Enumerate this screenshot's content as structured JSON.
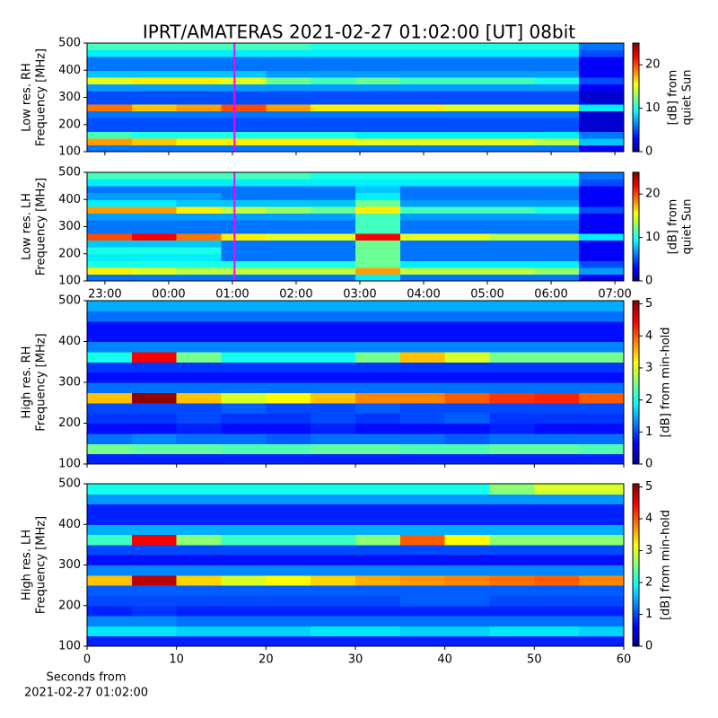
{
  "title": "IPRT/AMATERAS 2021-02-27 01:02:00 [UT]   08bit",
  "chart_data": [
    {
      "type": "heatmap",
      "ylabel": [
        "Low res. RH",
        "Frequency [MHz]"
      ],
      "colorbar_label": [
        "[dB] from",
        "quiet Sun"
      ],
      "colormap": "jet",
      "clim": [
        0,
        25
      ],
      "cticks": [
        0,
        10,
        20
      ],
      "xlim": [
        22.72,
        31.14
      ],
      "xticks": [
        23,
        24,
        25,
        26,
        27,
        28,
        29,
        30,
        31
      ],
      "xticklabels": false,
      "ylim": [
        100,
        500
      ],
      "yticks": [
        100,
        200,
        300,
        400,
        500
      ],
      "cursor_x": 25.0333,
      "cursor_color": "#ff00ff",
      "z": [
        [
          6,
          6,
          6,
          6,
          6,
          6,
          6,
          6,
          6,
          6,
          6,
          3
        ],
        [
          18,
          17,
          16,
          16,
          16,
          16,
          15,
          15,
          15,
          15,
          14,
          8
        ],
        [
          11,
          10,
          10,
          10,
          10,
          10,
          9,
          9,
          9,
          9,
          9,
          6
        ],
        [
          5,
          5,
          5,
          5,
          5,
          5,
          5,
          5,
          5,
          5,
          5,
          2
        ],
        [
          5,
          5,
          5,
          5,
          5,
          5,
          5,
          5,
          5,
          5,
          5,
          2
        ],
        [
          6,
          6,
          6,
          6,
          6,
          6,
          6,
          6,
          6,
          6,
          6,
          2
        ],
        [
          19,
          17,
          18,
          20,
          18,
          16,
          16,
          16,
          15,
          15,
          15,
          9
        ],
        [
          5,
          5,
          5,
          5,
          5,
          5,
          5,
          5,
          5,
          5,
          5,
          2
        ],
        [
          5,
          5,
          5,
          5,
          5,
          5,
          5,
          5,
          5,
          5,
          5,
          2
        ],
        [
          7,
          7,
          7,
          7,
          7,
          7,
          7,
          7,
          7,
          7,
          7,
          3
        ],
        [
          15,
          16,
          16,
          15,
          12,
          11,
          12,
          11,
          11,
          11,
          10,
          5
        ],
        [
          8,
          8,
          8,
          8,
          7,
          7,
          7,
          7,
          7,
          7,
          7,
          3
        ],
        [
          6,
          6,
          6,
          6,
          6,
          6,
          6,
          6,
          6,
          6,
          6,
          3
        ],
        [
          6,
          6,
          6,
          6,
          6,
          6,
          6,
          6,
          6,
          6,
          6,
          3
        ],
        [
          9,
          9,
          9,
          9,
          9,
          9,
          9,
          9,
          9,
          9,
          9,
          5
        ],
        [
          11,
          11,
          11,
          11,
          11,
          10,
          10,
          10,
          10,
          10,
          10,
          6
        ]
      ]
    },
    {
      "type": "heatmap",
      "ylabel": [
        "Low res. LH",
        "Frequency [MHz]"
      ],
      "colorbar_label": [
        "[dB] from",
        "quiet Sun"
      ],
      "colormap": "jet",
      "clim": [
        0,
        25
      ],
      "cticks": [
        0,
        10,
        20
      ],
      "xlim": [
        22.72,
        31.14
      ],
      "xticks": [
        {
          "value": 23,
          "label": "23:00"
        },
        {
          "value": 24,
          "label": "00:00"
        },
        {
          "value": 25,
          "label": "01:00"
        },
        {
          "value": 26,
          "label": "02:00"
        },
        {
          "value": 27,
          "label": "03:00"
        },
        {
          "value": 28,
          "label": "04:00"
        },
        {
          "value": 29,
          "label": "05:00"
        },
        {
          "value": 30,
          "label": "06:00"
        },
        {
          "value": 31,
          "label": "07:00"
        }
      ],
      "xticklabels": true,
      "ylim": [
        100,
        500
      ],
      "yticks": [
        100,
        200,
        300,
        400,
        500
      ],
      "cursor_x": 25.0333,
      "cursor_color": "#ff00ff",
      "z": [
        [
          6,
          6,
          6,
          6,
          6,
          6,
          9,
          6,
          6,
          6,
          6,
          3
        ],
        [
          16,
          15,
          14,
          14,
          14,
          14,
          18,
          14,
          14,
          14,
          13,
          7
        ],
        [
          10,
          10,
          10,
          10,
          10,
          10,
          12,
          9,
          9,
          9,
          9,
          5
        ],
        [
          9,
          9,
          9,
          6,
          6,
          6,
          12,
          6,
          6,
          6,
          6,
          3
        ],
        [
          10,
          10,
          10,
          6,
          6,
          6,
          12,
          6,
          6,
          6,
          6,
          3
        ],
        [
          8,
          8,
          8,
          6,
          6,
          6,
          12,
          6,
          6,
          6,
          6,
          3
        ],
        [
          20,
          22,
          19,
          16,
          15,
          15,
          22,
          15,
          15,
          14,
          14,
          9
        ],
        [
          6,
          6,
          6,
          6,
          6,
          6,
          11,
          6,
          6,
          6,
          6,
          3
        ],
        [
          6,
          6,
          6,
          6,
          6,
          6,
          11,
          6,
          6,
          6,
          6,
          3
        ],
        [
          7,
          7,
          7,
          7,
          7,
          7,
          11,
          7,
          7,
          7,
          7,
          3
        ],
        [
          18,
          18,
          16,
          14,
          13,
          12,
          16,
          11,
          11,
          11,
          10,
          5
        ],
        [
          9,
          9,
          8,
          8,
          8,
          8,
          12,
          7,
          7,
          7,
          7,
          3
        ],
        [
          7,
          7,
          7,
          6,
          6,
          6,
          9,
          6,
          6,
          6,
          6,
          3
        ],
        [
          6,
          6,
          6,
          6,
          6,
          6,
          8,
          6,
          6,
          6,
          6,
          3
        ],
        [
          9,
          9,
          9,
          9,
          9,
          9,
          9,
          9,
          9,
          9,
          9,
          5
        ],
        [
          11,
          11,
          11,
          11,
          11,
          10,
          10,
          10,
          10,
          10,
          10,
          6
        ]
      ]
    },
    {
      "type": "heatmap",
      "ylabel": [
        "High res. RH",
        "Frequency [MHz]"
      ],
      "colorbar_label": "[dB] from min-hold",
      "colormap": "jet",
      "clim": [
        0,
        5.1
      ],
      "cticks": [
        0,
        1,
        2,
        3,
        4,
        5
      ],
      "xlim": [
        0,
        60
      ],
      "xticks": [
        0,
        10,
        20,
        30,
        40,
        50,
        60
      ],
      "xticklabels": false,
      "ylim": [
        100,
        500
      ],
      "yticks": [
        100,
        200,
        300,
        400,
        500
      ],
      "z": [
        [
          0.8,
          0.8,
          0.8,
          0.8,
          0.8,
          0.8,
          0.8,
          0.8,
          0.8,
          0.8,
          0.8,
          0.8
        ],
        [
          2.5,
          2.4,
          2.4,
          2.3,
          2.3,
          2.4,
          2.4,
          2.3,
          2.3,
          2.4,
          2.4,
          2.3
        ],
        [
          1.2,
          1.3,
          1.2,
          1.2,
          1.1,
          1.2,
          1.2,
          1.2,
          1.1,
          1.2,
          1.2,
          1.2
        ],
        [
          0.7,
          0.7,
          0.8,
          0.7,
          0.7,
          0.8,
          0.7,
          0.7,
          0.7,
          0.8,
          0.7,
          0.7
        ],
        [
          0.9,
          0.9,
          1.0,
          0.9,
          0.9,
          1.0,
          0.9,
          1.0,
          1.1,
          0.9,
          0.9,
          0.9
        ],
        [
          1.0,
          1.0,
          1.0,
          1.1,
          1.0,
          1.0,
          1.1,
          1.0,
          1.0,
          1.0,
          1.0,
          1.0
        ],
        [
          3.5,
          5,
          3.5,
          3,
          3.2,
          3.5,
          3.8,
          3.8,
          4,
          4.2,
          4.3,
          4
        ],
        [
          1.2,
          1.2,
          1.2,
          1.2,
          1.2,
          1.2,
          1.2,
          1.2,
          1.2,
          1.2,
          1.2,
          1.2
        ],
        [
          0.7,
          0.7,
          0.7,
          0.7,
          0.7,
          0.7,
          0.7,
          0.7,
          0.7,
          0.7,
          0.7,
          0.7
        ],
        [
          0.9,
          0.9,
          0.9,
          0.9,
          0.9,
          0.9,
          0.9,
          0.9,
          0.9,
          0.9,
          0.9,
          0.9
        ],
        [
          2,
          4.5,
          2.5,
          2,
          2,
          2,
          2.5,
          3.5,
          3,
          2.5,
          2.5,
          2.5
        ],
        [
          1.3,
          1.3,
          1.3,
          1.3,
          1.3,
          1.3,
          1.3,
          1.3,
          1.3,
          1.3,
          1.3,
          1.3
        ],
        [
          0.7,
          0.7,
          0.7,
          0.7,
          0.7,
          0.7,
          0.7,
          0.7,
          0.7,
          0.7,
          0.7,
          0.7
        ],
        [
          0.7,
          0.7,
          0.7,
          0.7,
          0.7,
          0.7,
          0.7,
          0.7,
          0.7,
          0.7,
          0.7,
          0.7
        ],
        [
          1.2,
          1.2,
          1.2,
          1.2,
          1.2,
          1.2,
          1.2,
          1.2,
          1.2,
          1.2,
          1.2,
          1.2
        ],
        [
          1.5,
          1.5,
          1.5,
          1.5,
          1.5,
          1.5,
          1.5,
          1.5,
          1.5,
          1.5,
          1.5,
          1.5
        ]
      ]
    },
    {
      "type": "heatmap",
      "ylabel": [
        "High res. LH",
        "Frequency [MHz]"
      ],
      "colorbar_label": "[dB] from min-hold",
      "colormap": "jet",
      "clim": [
        0,
        5.1
      ],
      "cticks": [
        0,
        1,
        2,
        3,
        4,
        5
      ],
      "xlim": [
        0,
        60
      ],
      "xticks": [
        0,
        10,
        20,
        30,
        40,
        50,
        60
      ],
      "xticklabels": true,
      "xlabel": [
        "Seconds from",
        "2021-02-27 01:02:00"
      ],
      "ylim": [
        100,
        500
      ],
      "yticks": [
        100,
        200,
        300,
        400,
        500
      ],
      "z": [
        [
          0.8,
          0.8,
          0.8,
          0.8,
          0.8,
          0.8,
          0.8,
          0.8,
          0.8,
          0.8,
          0.8,
          0.8
        ],
        [
          1.8,
          1.8,
          1.7,
          1.7,
          1.7,
          1.8,
          1.8,
          1.7,
          1.7,
          1.8,
          1.8,
          1.7
        ],
        [
          1.3,
          1.3,
          1.2,
          1.2,
          1.2,
          1.2,
          1.2,
          1.2,
          1.2,
          1.2,
          1.2,
          1.2
        ],
        [
          0.8,
          0.9,
          0.8,
          0.8,
          0.8,
          0.8,
          0.8,
          0.8,
          0.8,
          0.8,
          0.8,
          0.8
        ],
        [
          1.0,
          1.0,
          1.0,
          1.0,
          1.0,
          1.0,
          1.0,
          1.1,
          1.1,
          1.0,
          1.0,
          1.0
        ],
        [
          1.1,
          1.1,
          1.1,
          1.1,
          1.1,
          1.1,
          1.1,
          1.1,
          1.1,
          1.1,
          1.1,
          1.1
        ],
        [
          3.5,
          4.8,
          3.4,
          3,
          3.2,
          3.4,
          3.6,
          3.7,
          3.8,
          3.9,
          4,
          3.8
        ],
        [
          1.3,
          1.3,
          1.3,
          1.3,
          1.3,
          1.3,
          1.3,
          1.3,
          1.3,
          1.3,
          1.3,
          1.3
        ],
        [
          0.7,
          0.7,
          0.7,
          0.7,
          0.7,
          0.7,
          0.7,
          0.7,
          0.7,
          0.7,
          0.7,
          0.7
        ],
        [
          1.0,
          1.0,
          1.0,
          1.0,
          1.0,
          1.0,
          1.0,
          1.0,
          1.0,
          1.0,
          1.0,
          1.0
        ],
        [
          2.2,
          4.5,
          2.6,
          2.2,
          2.2,
          2.2,
          2.6,
          4,
          3.2,
          2.6,
          2.6,
          2.6
        ],
        [
          1.5,
          1.5,
          1.5,
          1.5,
          1.5,
          1.5,
          1.5,
          1.5,
          1.5,
          1.5,
          1.5,
          1.5
        ],
        [
          0.8,
          0.8,
          0.8,
          0.8,
          0.8,
          0.8,
          0.8,
          0.8,
          0.8,
          0.8,
          0.8,
          0.8
        ],
        [
          0.8,
          0.8,
          0.8,
          0.8,
          0.8,
          0.8,
          0.8,
          0.8,
          0.8,
          0.8,
          0.8,
          0.8
        ],
        [
          1.4,
          1.4,
          1.4,
          1.4,
          1.4,
          1.4,
          1.4,
          1.4,
          1.4,
          1.4,
          1.4,
          1.4
        ],
        [
          2.0,
          2.0,
          2.0,
          2.0,
          2.0,
          2.0,
          2.0,
          2.0,
          2.0,
          2.6,
          3.0,
          3.0
        ]
      ]
    }
  ]
}
